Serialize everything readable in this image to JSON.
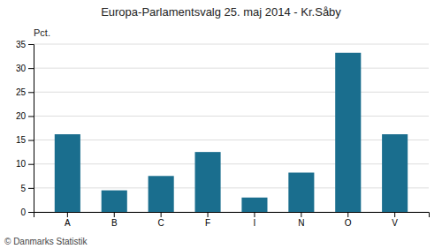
{
  "chart_data": {
    "type": "bar",
    "title": "Europa-Parlamentsvalg 25. maj 2014 - Kr.Såby",
    "categories": [
      "A",
      "B",
      "C",
      "F",
      "I",
      "N",
      "O",
      "V"
    ],
    "values": [
      16.2,
      4.5,
      7.5,
      12.5,
      3.0,
      8.2,
      33.2,
      16.2
    ],
    "color": "#1a6e8e",
    "ylabel": "Pct.",
    "ylim": [
      0,
      35
    ],
    "yticks": [
      0,
      5,
      10,
      15,
      20,
      25,
      30,
      35
    ],
    "grid": true,
    "annotations": [
      "© Danmarks Statistik"
    ]
  }
}
